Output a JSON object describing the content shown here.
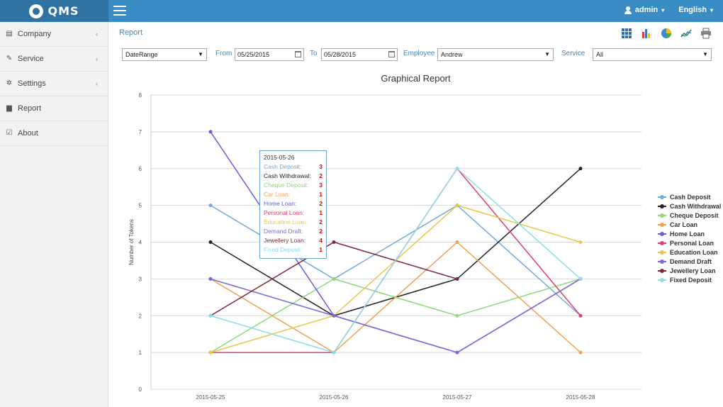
{
  "app": {
    "logo_text": "QMS"
  },
  "topbar": {
    "user_label": "admin",
    "language_label": "English"
  },
  "sidebar": {
    "items": [
      {
        "label": "Company",
        "has_children": true
      },
      {
        "label": "Service",
        "has_children": true
      },
      {
        "label": "Settings",
        "has_children": true
      },
      {
        "label": "Report",
        "has_children": false
      },
      {
        "label": "About",
        "has_children": false
      }
    ]
  },
  "breadcrumb": "Report",
  "toolbar": {
    "icons": [
      "grid-icon",
      "bar-chart-icon",
      "pie-chart-icon",
      "line-chart-icon",
      "print-icon"
    ]
  },
  "filters": {
    "range_select": "DateRange",
    "from_label": "From",
    "from_value": "05/25/2015",
    "to_label": "To",
    "to_value": "05/28/2015",
    "employee_label": "Employee",
    "employee_value": "Andrew",
    "service_label": "Service",
    "service_value": "All"
  },
  "chart_data": {
    "type": "line",
    "title": "Graphical Report",
    "ylabel": "Number of Tokens",
    "xlabel": "",
    "ylim": [
      0,
      8
    ],
    "yticks": [
      "0",
      "1",
      "2",
      "3",
      "4",
      "5",
      "6",
      "7",
      "8"
    ],
    "categories": [
      "2015-05-25",
      "2015-05-26",
      "2015-05-27",
      "2015-05-28"
    ],
    "legend_position": "right",
    "grid": true,
    "series": [
      {
        "name": "Cash Deposit",
        "color": "#6fa8dc",
        "values": [
          5,
          3,
          5,
          2
        ]
      },
      {
        "name": "Cash Withdrawal",
        "color": "#222222",
        "values": [
          4,
          2,
          3,
          6
        ]
      },
      {
        "name": "Cheque Deposit",
        "color": "#8ed97a",
        "values": [
          1,
          3,
          2,
          3
        ]
      },
      {
        "name": "Car Loan",
        "color": "#f0a050",
        "values": [
          3,
          1,
          4,
          1
        ]
      },
      {
        "name": "Home Loan",
        "color": "#6060d8",
        "values": [
          7,
          2,
          1,
          3
        ]
      },
      {
        "name": "Personal Loan",
        "color": "#e0406a",
        "values": [
          1,
          1,
          6,
          2
        ]
      },
      {
        "name": "Education Loan",
        "color": "#e6c84a",
        "values": [
          1,
          2,
          5,
          4
        ]
      },
      {
        "name": "Demand Draft",
        "color": "#7a6bd6",
        "values": [
          3,
          2,
          1,
          3
        ]
      },
      {
        "name": "Jewellery Loan",
        "color": "#7a2a3a",
        "values": [
          2,
          4,
          3,
          null
        ]
      },
      {
        "name": "Fixed Deposit",
        "color": "#8cdde8",
        "values": [
          2,
          1,
          6,
          3
        ]
      }
    ],
    "tooltip": {
      "header": "2015-05-26",
      "rows": [
        {
          "label": "Cash Deposit:",
          "value": "3",
          "color": "#6fa8dc"
        },
        {
          "label": "Cash Withdrawal:",
          "value": "2",
          "color": "#222222"
        },
        {
          "label": "Cheque Deposit:",
          "value": "3",
          "color": "#8ed97a"
        },
        {
          "label": "Car Loan:",
          "value": "1",
          "color": "#f0a050"
        },
        {
          "label": "Home Loan:",
          "value": "2",
          "color": "#6060d8"
        },
        {
          "label": "Personal Loan:",
          "value": "1",
          "color": "#e0406a"
        },
        {
          "label": "Education Loan:",
          "value": "2",
          "color": "#e6c84a"
        },
        {
          "label": "Demand Draft:",
          "value": "2",
          "color": "#7a6bd6"
        },
        {
          "label": "Jewellery Loan:",
          "value": "4",
          "color": "#7a2a3a"
        },
        {
          "label": "Fixed Deposit:",
          "value": "1",
          "color": "#8cdde8"
        }
      ]
    }
  }
}
